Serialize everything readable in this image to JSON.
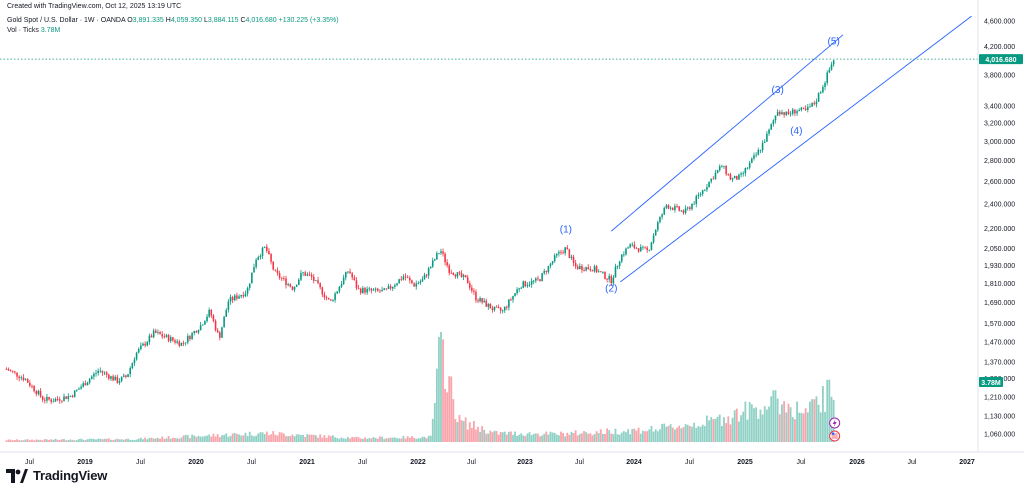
{
  "header": {
    "created": "Created with TradingView.com, Oct 12, 2025 13:19 UTC",
    "symbol": "Gold Spot / U.S. Dollar · 1W · OANDA",
    "open_label": "O",
    "open": "3,891.335",
    "high_label": "H",
    "high": "4,059.350",
    "low_label": "L",
    "low": "3,884.115",
    "close_label": "C",
    "close": "4,016.680",
    "change": "+130.225 (+3.35%)",
    "vol_label": "Vol · Ticks",
    "vol_value": "3.78M"
  },
  "brand": {
    "name": "TradingView"
  },
  "colors": {
    "up": "#089981",
    "down": "#f23645",
    "channel": "#2962ff",
    "wave": "#2962ff",
    "price_tag": "#089981",
    "vol_tag": "#089981"
  },
  "chart_data": {
    "type": "candlestick",
    "scale": "log",
    "timeframe": "1W",
    "yticks": [
      4600,
      4200,
      3800,
      3400,
      3200,
      3000,
      2800,
      2600,
      2400,
      2200,
      2050,
      1930,
      1810,
      1690,
      1570,
      1470,
      1370,
      1290,
      1210,
      1130,
      1060
    ],
    "ytick_labels": [
      "4,600.000",
      "4,200.000",
      "3,800.000",
      "3,400.000",
      "3,200.000",
      "3,000.000",
      "2,800.000",
      "2,600.000",
      "2,400.000",
      "2,200.000",
      "2,050.000",
      "1,930.000",
      "1,810.000",
      "1,690.000",
      "1,570.000",
      "1,470.000",
      "1,370.000",
      "1,290.000",
      "1,210.000",
      "1,130.000",
      "1,060.000"
    ],
    "ylim": [
      1030,
      4750
    ],
    "xticks": [
      "Jul",
      "2019",
      "Jul",
      "2020",
      "Jul",
      "2021",
      "Jul",
      "2022",
      "Jul",
      "2023",
      "Jul",
      "2024",
      "Jul",
      "2025",
      "Jul",
      "2026",
      "Jul",
      "2027"
    ],
    "xtick_dates": [
      "2018-07",
      "2019-01",
      "2019-07",
      "2020-01",
      "2020-07",
      "2021-01",
      "2021-07",
      "2022-01",
      "2022-07",
      "2023-01",
      "2023-07",
      "2024-01",
      "2024-07",
      "2025-01",
      "2025-07",
      "2026-01",
      "2026-07",
      "2027-01"
    ],
    "last_price": 4016.68,
    "last_price_label": "4,016.680",
    "last_volume_label": "3.78M",
    "price_path": [
      [
        "2018-04",
        1335
      ],
      [
        "2018-06",
        1290
      ],
      [
        "2018-08",
        1200
      ],
      [
        "2018-09",
        1195
      ],
      [
        "2018-11",
        1215
      ],
      [
        "2019-01",
        1290
      ],
      [
        "2019-02",
        1330
      ],
      [
        "2019-04",
        1280
      ],
      [
        "2019-05",
        1300
      ],
      [
        "2019-06",
        1410
      ],
      [
        "2019-08",
        1520
      ],
      [
        "2019-09",
        1500
      ],
      [
        "2019-11",
        1460
      ],
      [
        "2020-01",
        1560
      ],
      [
        "2020-02",
        1640
      ],
      [
        "2020-03",
        1490
      ],
      [
        "2020-04",
        1700
      ],
      [
        "2020-06",
        1760
      ],
      [
        "2020-07",
        1980
      ],
      [
        "2020-08",
        2060
      ],
      [
        "2020-09",
        1880
      ],
      [
        "2020-11",
        1780
      ],
      [
        "2020-12",
        1880
      ],
      [
        "2021-01",
        1850
      ],
      [
        "2021-03",
        1690
      ],
      [
        "2021-05",
        1900
      ],
      [
        "2021-06",
        1770
      ],
      [
        "2021-08",
        1760
      ],
      [
        "2021-09",
        1760
      ],
      [
        "2021-11",
        1860
      ],
      [
        "2021-12",
        1800
      ],
      [
        "2022-01",
        1830
      ],
      [
        "2022-03",
        2040
      ],
      [
        "2022-04",
        1900
      ],
      [
        "2022-06",
        1830
      ],
      [
        "2022-07",
        1720
      ],
      [
        "2022-09",
        1650
      ],
      [
        "2022-10",
        1640
      ],
      [
        "2022-12",
        1800
      ],
      [
        "2023-02",
        1830
      ],
      [
        "2023-04",
        2000
      ],
      [
        "2023-05",
        2050
      ],
      [
        "2023-06",
        1920
      ],
      [
        "2023-08",
        1910
      ],
      [
        "2023-10",
        1830
      ],
      [
        "2023-11",
        1990
      ],
      [
        "2023-12",
        2070
      ],
      [
        "2024-02",
        2030
      ],
      [
        "2024-03",
        2230
      ],
      [
        "2024-04",
        2390
      ],
      [
        "2024-06",
        2330
      ],
      [
        "2024-07",
        2420
      ],
      [
        "2024-09",
        2640
      ],
      [
        "2024-10",
        2750
      ],
      [
        "2024-11",
        2620
      ],
      [
        "2024-12",
        2640
      ],
      [
        "2025-02",
        2900
      ],
      [
        "2025-03",
        3090
      ],
      [
        "2025-04",
        3350
      ],
      [
        "2025-05",
        3300
      ],
      [
        "2025-06",
        3350
      ],
      [
        "2025-07",
        3340
      ],
      [
        "2025-08",
        3440
      ],
      [
        "2025-09",
        3700
      ],
      [
        "2025-10",
        4016.68
      ]
    ],
    "volume_profile": [
      [
        "2018-04",
        0.02
      ],
      [
        "2019-06",
        0.03
      ],
      [
        "2020-03",
        0.07
      ],
      [
        "2020-08",
        0.09
      ],
      [
        "2021-06",
        0.04
      ],
      [
        "2022-02",
        0.05
      ],
      [
        "2022-03",
        1.0
      ],
      [
        "2022-05",
        0.22
      ],
      [
        "2022-09",
        0.09
      ],
      [
        "2023-04",
        0.08
      ],
      [
        "2024-03",
        0.13
      ],
      [
        "2024-09",
        0.21
      ],
      [
        "2025-04",
        0.41
      ],
      [
        "2025-07",
        0.29
      ],
      [
        "2025-10",
        0.53
      ]
    ],
    "annotations": [
      {
        "text": "(1)",
        "date": "2023-05",
        "price": 2170
      },
      {
        "text": "(2)",
        "date": "2023-10",
        "price": 1760
      },
      {
        "text": "(3)",
        "date": "2025-04",
        "price": 3560
      },
      {
        "text": "(4)",
        "date": "2025-06",
        "price": 3080
      },
      {
        "text": "(5)",
        "date": "2025-10",
        "price": 4230
      }
    ],
    "channel": {
      "upper": [
        [
          "2023-10",
          2180
        ],
        [
          "2025-11",
          4380
        ]
      ],
      "lower": [
        [
          "2023-11",
          1820
        ],
        [
          "2027-01",
          4680
        ]
      ]
    },
    "grid": false,
    "legend": "top-left"
  }
}
